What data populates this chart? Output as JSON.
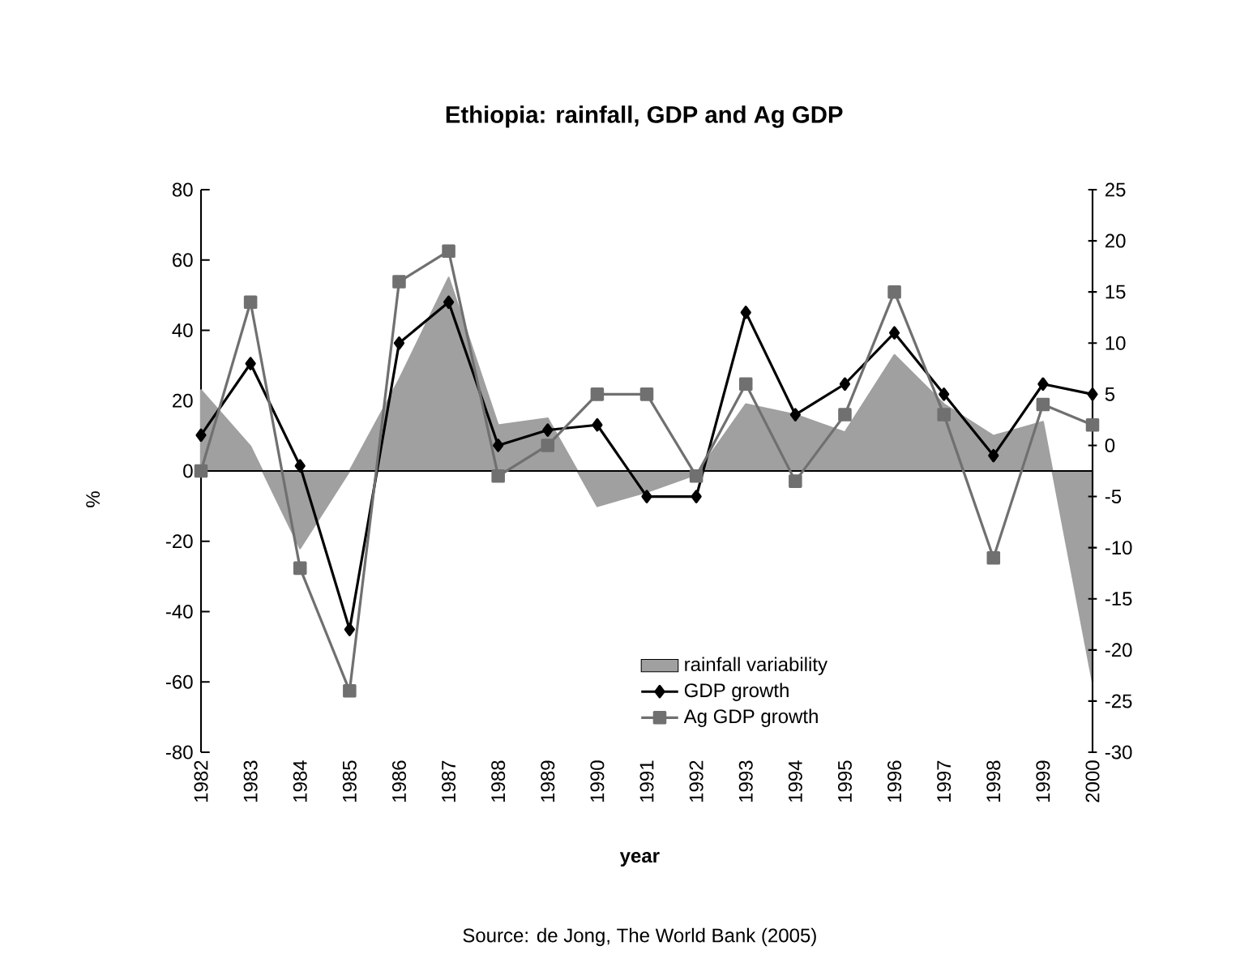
{
  "chart_data": {
    "type": "line",
    "title": "Ethiopia: rainfall, GDP and Ag GDP",
    "xlabel": "year",
    "ylabel": "%",
    "categories": [
      "1982",
      "1983",
      "1984",
      "1985",
      "1986",
      "1987",
      "1988",
      "1989",
      "1990",
      "1991",
      "1992",
      "1993",
      "1994",
      "1995",
      "1996",
      "1997",
      "1998",
      "1999",
      "2000"
    ],
    "series": [
      {
        "name": "rainfall variability",
        "type": "area",
        "axis": "y",
        "color": "#a0a0a0",
        "values": [
          23,
          7,
          -22,
          0,
          26,
          55,
          13,
          15,
          -10,
          -6,
          -1,
          19,
          16,
          11,
          33,
          19,
          10,
          14,
          -60
        ]
      },
      {
        "name": "GDP growth",
        "axis": "y2",
        "color": "#000000",
        "marker": "diamond",
        "values": [
          1,
          8,
          -2,
          -18,
          10,
          14,
          0,
          1.5,
          2,
          -5,
          -5,
          13,
          3,
          6,
          11,
          5,
          -1,
          6,
          5
        ]
      },
      {
        "name": "Ag GDP growth",
        "axis": "y2",
        "color": "#707070",
        "marker": "square",
        "values": [
          -2.5,
          14,
          -12,
          -24,
          16,
          19,
          -3,
          0,
          5,
          5,
          -3,
          6,
          -3.5,
          3,
          15,
          3,
          -11,
          4,
          2
        ]
      }
    ],
    "ylim": [
      -80,
      80
    ],
    "yticks": [
      -80,
      -60,
      -40,
      -20,
      0,
      20,
      40,
      60,
      80
    ],
    "y2lim": [
      -30,
      25
    ],
    "y2ticks": [
      -30,
      -25,
      -20,
      -15,
      -10,
      -5,
      0,
      5,
      10,
      15,
      20,
      25
    ],
    "legend": "bottom",
    "ref_lines": [
      {
        "axis": "y",
        "value": 0,
        "color": "#000000"
      }
    ],
    "annotations": [
      "Source: de Jong, The World Bank (2005)"
    ]
  }
}
